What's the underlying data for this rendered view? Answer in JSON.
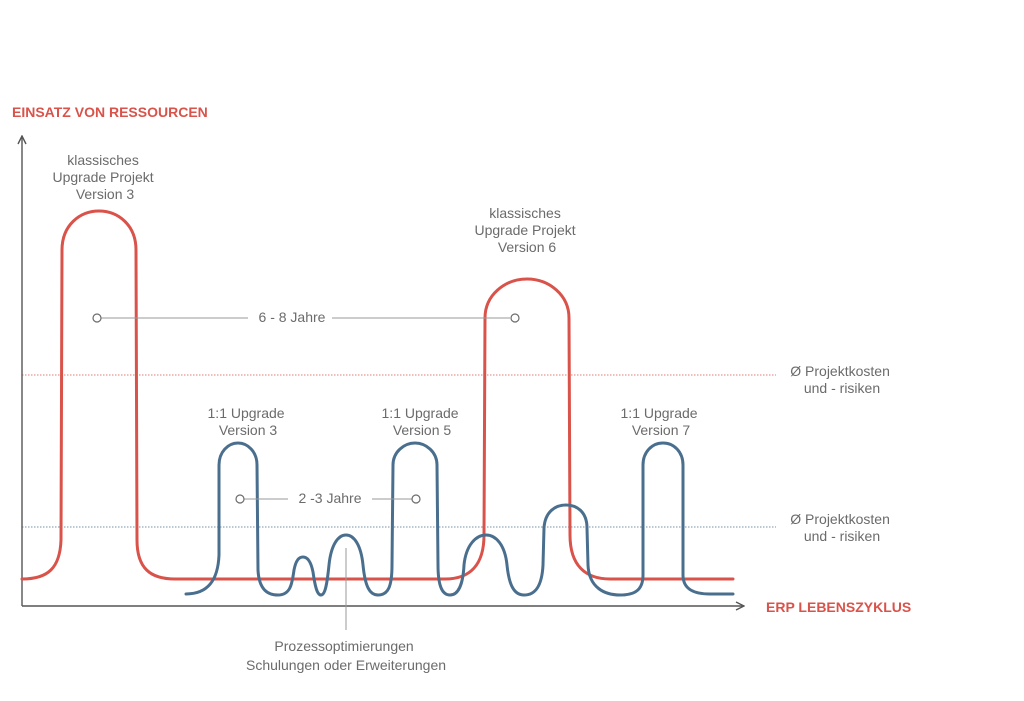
{
  "colors": {
    "red": "#d9534a",
    "blue": "#4a6f8e",
    "axis": "#555555",
    "text": "#6b6b6b",
    "guide": "#9a9a9a"
  },
  "axes": {
    "y_title": "EINSATZ VON RESSOURCEN",
    "x_title": "ERP LEBENSZYKLUS"
  },
  "red_labels": [
    [
      "klassisches",
      "Upgrade Projekt",
      "Version 3"
    ],
    [
      "klassisches",
      "Upgrade Projekt",
      "Version 6"
    ]
  ],
  "blue_labels": [
    [
      "1:1 Upgrade",
      "Version 3"
    ],
    [
      "1:1 Upgrade",
      "Version 5"
    ],
    [
      "1:1 Upgrade",
      "Version 7"
    ]
  ],
  "intervals": {
    "long": "6 - 8 Jahre",
    "short": "2 -3 Jahre"
  },
  "cost_labels": {
    "red": [
      "Ø Projektkosten",
      "und - risiken"
    ],
    "blue": [
      "Ø Projektkosten",
      "und - risiken"
    ]
  },
  "bottom_note": [
    "Prozessoptimierungen",
    "Schulungen oder Erweiterungen"
  ]
}
